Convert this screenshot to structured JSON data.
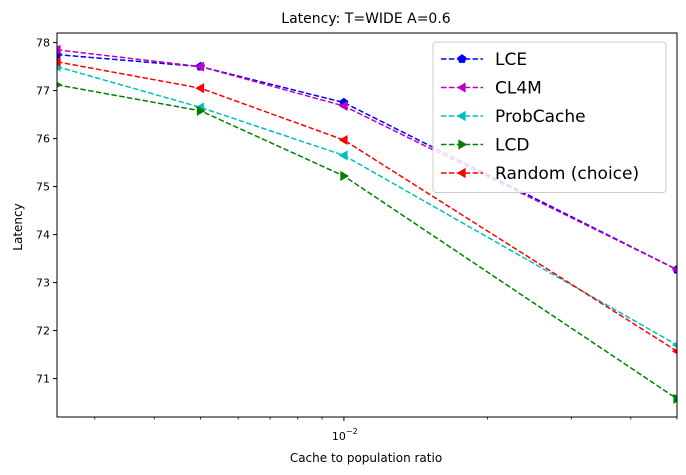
{
  "chart_data": {
    "type": "line",
    "title": "Latency: T=WIDE A=0.6",
    "xlabel": "Cache to population ratio",
    "ylabel": "Latency",
    "xscale": "log",
    "xlim": [
      0.0025,
      0.05
    ],
    "ylim": [
      70.2,
      78.2
    ],
    "x": [
      0.0025,
      0.005,
      0.01,
      0.05
    ],
    "x_tick_label": "10",
    "x_tick_exponent": "−2",
    "x_tick_value": 0.01,
    "y_ticks": [
      "71",
      "72",
      "73",
      "74",
      "75",
      "76",
      "77",
      "78"
    ],
    "legend_position": "top-right",
    "grid": false,
    "series": [
      {
        "name": "LCE",
        "color": "#0000ff",
        "marker": "pentagon",
        "values": [
          77.75,
          77.5,
          76.75,
          73.27
        ]
      },
      {
        "name": "CL4M",
        "color": "#bf00bf",
        "marker": "triangle-left",
        "values": [
          77.85,
          77.5,
          76.68,
          73.27
        ]
      },
      {
        "name": "ProbCache",
        "color": "#00bfbf",
        "marker": "triangle-left",
        "values": [
          77.5,
          76.65,
          75.65,
          71.7
        ]
      },
      {
        "name": "LCD",
        "color": "#008000",
        "marker": "triangle-right",
        "values": [
          77.12,
          76.58,
          75.22,
          70.58
        ]
      },
      {
        "name": "Random (choice)",
        "color": "#ff0000",
        "marker": "triangle-left",
        "values": [
          77.6,
          77.05,
          75.97,
          71.57
        ]
      }
    ]
  }
}
